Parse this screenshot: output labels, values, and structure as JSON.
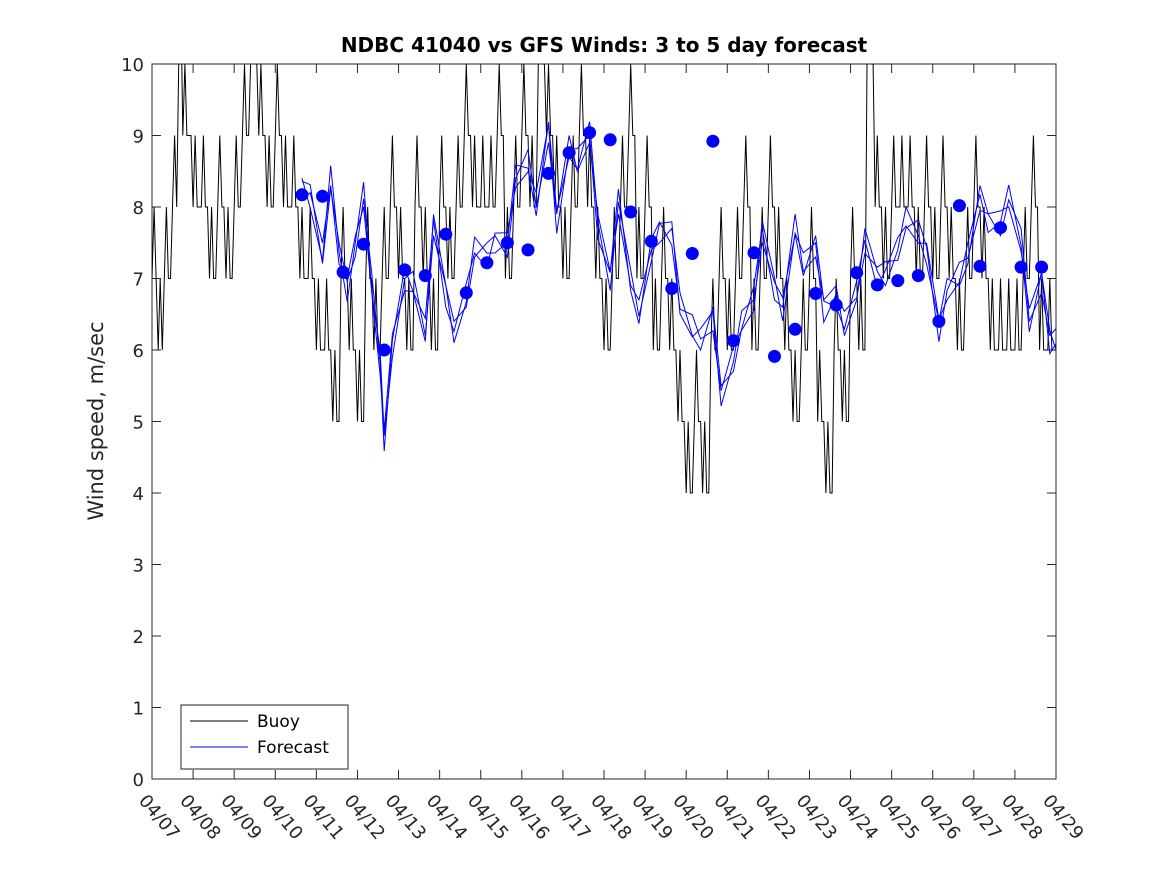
{
  "chart_data": {
    "type": "line",
    "title": "NDBC 41040 vs GFS Winds: 3 to 5 day forecast",
    "ylabel": "Wind speed, m/sec",
    "xlabel": "",
    "ylim": [
      0,
      10
    ],
    "yticks": [
      0,
      1,
      2,
      3,
      4,
      5,
      6,
      7,
      8,
      9,
      10
    ],
    "xlim": [
      "04/07",
      "04/29"
    ],
    "xticks": [
      "04/07",
      "04/08",
      "04/09",
      "04/10",
      "04/11",
      "04/12",
      "04/13",
      "04/14",
      "04/15",
      "04/16",
      "04/17",
      "04/18",
      "04/19",
      "04/20",
      "04/21",
      "04/22",
      "04/23",
      "04/24",
      "04/25",
      "04/26",
      "04/27",
      "04/28",
      "04/29"
    ],
    "legend": {
      "placement": "bottom-left",
      "entries": [
        "Buoy",
        "Forecast"
      ]
    },
    "colors": {
      "buoy": "#000000",
      "forecast": "#0000ff"
    },
    "series": [
      {
        "name": "Buoy",
        "x": [
          0.0,
          0.15,
          0.3,
          0.5,
          0.65,
          0.75,
          1.0,
          1.2,
          1.4,
          1.6,
          1.8,
          2.0,
          2.2,
          2.4,
          2.6,
          2.8,
          3.0,
          3.2,
          3.4,
          3.6,
          3.8,
          4.0,
          4.2,
          4.4,
          4.6,
          4.8,
          5.0,
          5.2,
          5.4,
          5.6,
          5.8,
          6.0,
          6.2,
          6.4,
          6.6,
          6.8,
          7.0,
          7.2,
          7.4,
          7.6,
          7.8,
          8.0,
          8.2,
          8.4,
          8.6,
          8.8,
          9.0,
          9.2,
          9.4,
          9.6,
          9.8,
          10.0,
          10.2,
          10.4,
          10.6,
          10.8,
          11.0,
          11.2,
          11.4,
          11.6,
          11.8,
          12.0,
          12.2,
          12.4,
          12.6,
          12.8,
          13.0,
          13.2,
          13.4,
          13.6,
          13.8,
          14.0,
          14.2,
          14.4,
          14.6,
          14.8,
          15.0,
          15.2,
          15.4,
          15.6,
          15.8,
          16.0,
          16.2,
          16.4,
          16.6,
          16.8,
          17.0,
          17.2,
          17.4,
          17.6,
          17.8,
          18.0,
          18.2,
          18.4,
          18.6,
          18.8,
          19.0,
          19.2,
          19.4,
          19.6,
          19.8,
          20.0,
          20.2,
          20.4,
          20.6,
          20.8,
          21.0,
          21.2,
          21.4,
          21.6,
          21.8,
          22.0
        ],
        "values": [
          7,
          6,
          7,
          8,
          10,
          9,
          8,
          8,
          7,
          8,
          7,
          8,
          9,
          10,
          9,
          8,
          9,
          8,
          8,
          7,
          7,
          6,
          6,
          5,
          7,
          6,
          5,
          7,
          6,
          7,
          8,
          7,
          6,
          8,
          7,
          6,
          8,
          7,
          8,
          9,
          8,
          8,
          8,
          9,
          7,
          8,
          9,
          8,
          10,
          9,
          8,
          7,
          8,
          9,
          8,
          7,
          6,
          7,
          8,
          9,
          7,
          8,
          6,
          7,
          6,
          5,
          4,
          5,
          4,
          6,
          7,
          6,
          7,
          8,
          6,
          7,
          8,
          7,
          6,
          5,
          6,
          7,
          5,
          4,
          6,
          5,
          7,
          6,
          10,
          8,
          7,
          8,
          8,
          8,
          7,
          8,
          7,
          8,
          7,
          6,
          7,
          8,
          7,
          6,
          6,
          6,
          6,
          7,
          8,
          6,
          6,
          6
        ],
        "note_x": "days since 04/07 00:00"
      },
      {
        "name": "Forecast",
        "x": [
          3.65,
          3.85,
          4.15,
          4.35,
          4.55,
          4.75,
          4.95,
          5.15,
          5.35,
          5.55,
          5.65,
          5.85,
          6.15,
          6.35,
          6.65,
          6.85,
          7.15,
          7.35,
          7.65,
          7.85,
          8.15,
          8.35,
          8.65,
          8.85,
          9.15,
          9.35,
          9.65,
          9.85,
          10.15,
          10.35,
          10.65,
          10.85,
          11.15,
          11.35,
          11.65,
          11.85,
          12.15,
          12.35,
          12.65,
          12.85,
          13.15,
          13.35,
          13.65,
          13.85,
          14.15,
          14.35,
          14.65,
          14.85,
          15.15,
          15.35,
          15.65,
          15.85,
          16.15,
          16.35,
          16.65,
          16.85,
          17.15,
          17.35,
          17.65,
          17.85,
          18.15,
          18.35,
          18.65,
          18.85,
          19.15,
          19.35,
          19.65,
          19.85,
          20.15,
          20.35,
          20.65,
          20.85,
          21.15,
          21.35,
          21.65,
          21.85,
          22.0
        ],
        "values": [
          8.1,
          8.2,
          7.5,
          8.3,
          7.2,
          7.0,
          7.6,
          8.0,
          6.8,
          6.0,
          4.8,
          5.9,
          7.0,
          7.1,
          6.2,
          7.6,
          6.9,
          6.4,
          6.6,
          7.3,
          7.5,
          7.6,
          7.3,
          8.4,
          8.8,
          8.0,
          8.9,
          7.9,
          9.0,
          8.5,
          8.9,
          7.9,
          7.1,
          7.9,
          6.9,
          6.7,
          7.4,
          7.5,
          7.7,
          6.8,
          6.2,
          6.0,
          6.6,
          5.5,
          5.7,
          6.3,
          6.9,
          7.7,
          6.7,
          6.6,
          7.9,
          7.1,
          7.3,
          6.7,
          6.9,
          6.2,
          6.7,
          7.7,
          7.1,
          6.9,
          7.4,
          8.0,
          7.6,
          7.2,
          6.4,
          7.0,
          6.9,
          7.2,
          8.3,
          7.9,
          7.6,
          8.1,
          7.7,
          6.4,
          6.8,
          6.2,
          6.3
        ]
      }
    ],
    "markers": {
      "name": "Forecast",
      "x": [
        3.65,
        4.15,
        4.65,
        5.15,
        5.65,
        6.15,
        6.65,
        7.15,
        7.65,
        8.15,
        8.65,
        9.15,
        9.65,
        10.15,
        10.65,
        11.15,
        11.65,
        12.15,
        12.65,
        13.15,
        13.65,
        14.15,
        14.65,
        15.15,
        15.65,
        16.15,
        16.65,
        17.15,
        17.65,
        18.15,
        18.65,
        19.15,
        19.65,
        20.15,
        20.65,
        21.15,
        21.65
      ],
      "values": [
        8.17,
        8.15,
        7.09,
        7.48,
        6.0,
        7.12,
        7.04,
        7.62,
        6.8,
        7.22,
        7.5,
        7.4,
        8.47,
        8.76,
        9.04,
        8.94,
        7.93,
        7.52,
        6.86,
        7.35,
        8.92,
        6.13,
        7.36,
        5.91,
        6.29,
        6.79,
        6.63,
        7.08,
        6.91,
        6.97,
        7.04,
        6.4,
        8.02,
        7.17,
        7.71,
        7.16,
        7.16
      ]
    }
  }
}
